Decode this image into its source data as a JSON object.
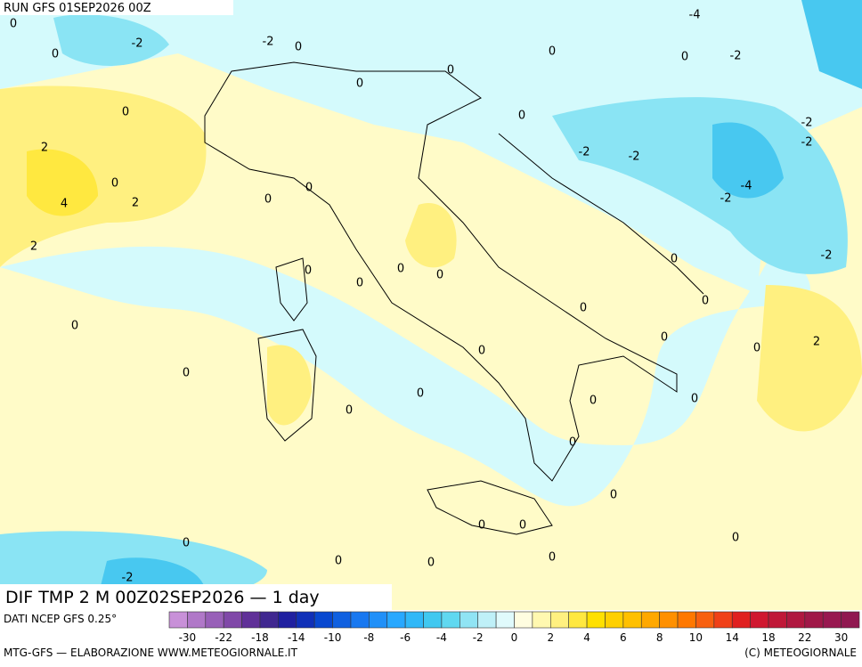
{
  "header": {
    "run": "RUN GFS 01SEP2026 00Z"
  },
  "map": {
    "contour_labels": [
      0,
      -2,
      0,
      -2,
      0,
      -4,
      0,
      0,
      -2,
      0,
      0,
      0,
      0,
      2,
      0,
      2,
      4,
      0,
      0,
      -2,
      -2,
      -2,
      -2,
      -4,
      -2,
      2,
      0,
      0,
      0,
      0,
      0,
      -2,
      0,
      0,
      0,
      0,
      0,
      2,
      0,
      0,
      0,
      0,
      0,
      0,
      0,
      0,
      0,
      0,
      0,
      0,
      0,
      0,
      0,
      -2
    ]
  },
  "footer": {
    "title": "DIF TMP 2 M 00Z02SEP2026 — 1 day",
    "source": "DATI NCEP GFS 0.25°",
    "credit_left": "MTG-GFS — ELABORAZIONE WWW.METEOGIORNALE.IT",
    "credit_right": "(C) METEOGIORNALE"
  },
  "colorbar": {
    "ticks": [
      -30,
      -22,
      -18,
      -14,
      -10,
      -8,
      -6,
      -4,
      -2,
      0,
      2,
      4,
      6,
      8,
      10,
      14,
      18,
      22,
      30
    ],
    "colors": [
      "#c890d8",
      "#b078c8",
      "#9860b8",
      "#8048a8",
      "#603098",
      "#402890",
      "#2020a0",
      "#1030b8",
      "#0848d0",
      "#1060e0",
      "#1878f0",
      "#2090f8",
      "#28a8ff",
      "#30b8f8",
      "#40c8f0",
      "#60d8f0",
      "#90e4f4",
      "#bff0f8",
      "#e0fafc",
      "#fffde0",
      "#fff8b0",
      "#fff080",
      "#ffe840",
      "#ffe000",
      "#ffd000",
      "#ffc000",
      "#ffa800",
      "#ff9000",
      "#ff7800",
      "#f86010",
      "#f04018",
      "#e02020",
      "#d01830",
      "#c01838",
      "#b01840",
      "#a01848",
      "#981850",
      "#901850"
    ]
  }
}
